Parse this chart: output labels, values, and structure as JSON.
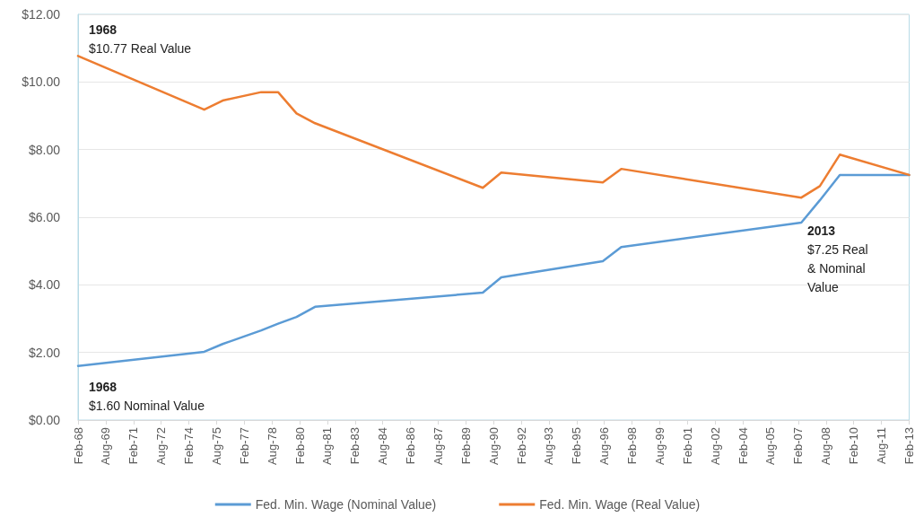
{
  "chart_data": {
    "type": "line",
    "x": [
      "1968-02",
      "1974-12",
      "1975-12",
      "1978-01",
      "1978-12",
      "1979-12",
      "1980-12",
      "1990-01",
      "1991-01",
      "1996-07",
      "1997-07",
      "2007-04",
      "2008-04",
      "2009-05",
      "2013-02"
    ],
    "series": [
      {
        "name": "Fed. Min. Wage (Nominal Value)",
        "color": "#5b9bd5",
        "values": [
          1.6,
          2.02,
          2.25,
          2.65,
          2.85,
          3.05,
          3.35,
          3.77,
          4.22,
          4.7,
          5.12,
          5.84,
          6.5,
          7.25,
          7.25
        ]
      },
      {
        "name": "Fed. Min. Wage (Real Value)",
        "color": "#ed7d31",
        "values": [
          10.77,
          9.18,
          9.45,
          9.7,
          9.7,
          9.07,
          8.78,
          6.87,
          7.32,
          7.03,
          7.43,
          6.58,
          6.92,
          7.85,
          7.25
        ]
      }
    ],
    "xlim": [
      "1968-02",
      "2013-02"
    ],
    "xticks": [
      {
        "value": "1968-02",
        "label": "Feb-68"
      },
      {
        "value": "1969-08",
        "label": "Aug-69"
      },
      {
        "value": "1971-02",
        "label": "Feb-71"
      },
      {
        "value": "1972-08",
        "label": "Aug-72"
      },
      {
        "value": "1974-02",
        "label": "Feb-74"
      },
      {
        "value": "1975-08",
        "label": "Aug-75"
      },
      {
        "value": "1977-02",
        "label": "Feb-77"
      },
      {
        "value": "1978-08",
        "label": "Aug-78"
      },
      {
        "value": "1980-02",
        "label": "Feb-80"
      },
      {
        "value": "1981-08",
        "label": "Aug-81"
      },
      {
        "value": "1983-02",
        "label": "Feb-83"
      },
      {
        "value": "1984-08",
        "label": "Aug-84"
      },
      {
        "value": "1986-02",
        "label": "Feb-86"
      },
      {
        "value": "1987-08",
        "label": "Aug-87"
      },
      {
        "value": "1989-02",
        "label": "Feb-89"
      },
      {
        "value": "1990-08",
        "label": "Aug-90"
      },
      {
        "value": "1992-02",
        "label": "Feb-92"
      },
      {
        "value": "1993-08",
        "label": "Aug-93"
      },
      {
        "value": "1995-02",
        "label": "Feb-95"
      },
      {
        "value": "1996-08",
        "label": "Aug-96"
      },
      {
        "value": "1998-02",
        "label": "Feb-98"
      },
      {
        "value": "1999-08",
        "label": "Aug-99"
      },
      {
        "value": "2001-02",
        "label": "Feb-01"
      },
      {
        "value": "2002-08",
        "label": "Aug-02"
      },
      {
        "value": "2004-02",
        "label": "Feb-04"
      },
      {
        "value": "2005-08",
        "label": "Aug-05"
      },
      {
        "value": "2007-02",
        "label": "Feb-07"
      },
      {
        "value": "2008-08",
        "label": "Aug-08"
      },
      {
        "value": "2010-02",
        "label": "Feb-10"
      },
      {
        "value": "2011-08",
        "label": "Aug-11"
      },
      {
        "value": "2013-02",
        "label": "Feb-13"
      }
    ],
    "ylim": [
      0,
      12
    ],
    "yticks": [
      {
        "value": 0,
        "label": "$0.00"
      },
      {
        "value": 2,
        "label": "$2.00"
      },
      {
        "value": 4,
        "label": "$4.00"
      },
      {
        "value": 6,
        "label": "$6.00"
      },
      {
        "value": 8,
        "label": "$8.00"
      },
      {
        "value": 10,
        "label": "$10.00"
      },
      {
        "value": 12,
        "label": "$12.00"
      }
    ],
    "annotations": [
      {
        "text": "1968\n$10.77 Real Value",
        "x": "1968-02",
        "y": 10.77
      },
      {
        "text": "1968\n$1.60 Nominal Value",
        "x": "1968-02",
        "y": 1.6
      },
      "2013\n$7.25 Real\n& Nominal\nValue"
    ],
    "grid": "y",
    "legend": "bottom",
    "marker": "none",
    "line_style": "solid"
  }
}
